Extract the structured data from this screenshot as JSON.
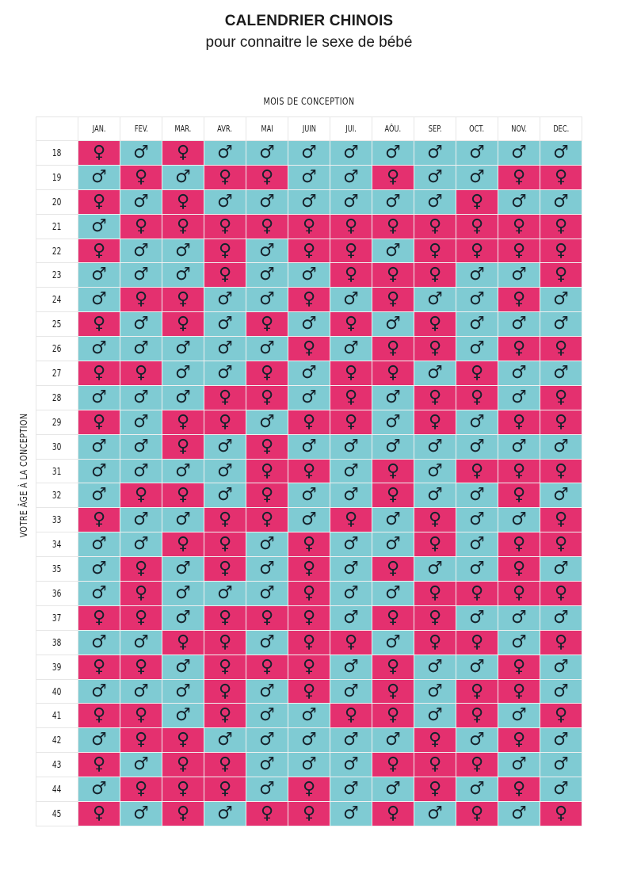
{
  "title": "CALENDRIER CHINOIS",
  "subtitle": "pour connaitre le sexe de bébé",
  "x_axis_label": "MOIS DE CONCEPTION",
  "y_axis_label": "VOTRE ÂGE À LA CONCEPTION",
  "colors": {
    "girl": "#e4306f",
    "boy": "#7fcbd3",
    "symbol": "#15222c"
  },
  "symbols": {
    "F": "♀",
    "M": "♂"
  },
  "months": [
    "JAN.",
    "FEV.",
    "MAR.",
    "AVR.",
    "MAI",
    "JUIN",
    "JUI.",
    "AÔU.",
    "SEP.",
    "OCT.",
    "NOV.",
    "DEC."
  ],
  "rows": [
    {
      "age": "18",
      "cells": "FMFMMMMMMMMM"
    },
    {
      "age": "19",
      "cells": "MFMFFMMFMMFF"
    },
    {
      "age": "20",
      "cells": "FMFMMMMMMFMM"
    },
    {
      "age": "21",
      "cells": "MFFFFFFFFFFF"
    },
    {
      "age": "22",
      "cells": "FMMFMFFMFFFF"
    },
    {
      "age": "23",
      "cells": "MMMFMMFFFMMF"
    },
    {
      "age": "24",
      "cells": "MFFMMFMFMMFM"
    },
    {
      "age": "25",
      "cells": "FMFMFMFMFMMM"
    },
    {
      "age": "26",
      "cells": "MMMMMFMFFMFF"
    },
    {
      "age": "27",
      "cells": "FFMMFMFFMFMM"
    },
    {
      "age": "28",
      "cells": "MMMFFMFMFFMF"
    },
    {
      "age": "29",
      "cells": "FMFFMFFMFMFF"
    },
    {
      "age": "30",
      "cells": "MMFMFMMMMMMM"
    },
    {
      "age": "31",
      "cells": "MMMMFFMFMFFF"
    },
    {
      "age": "32",
      "cells": "MFFMFMMFMMFM"
    },
    {
      "age": "33",
      "cells": "FMMFFMFMFMMF"
    },
    {
      "age": "34",
      "cells": "MMFFMFMMFMFF"
    },
    {
      "age": "35",
      "cells": "MFMFMFMFMMFM"
    },
    {
      "age": "36",
      "cells": "MFMMMFMMFFFF"
    },
    {
      "age": "37",
      "cells": "FFMFFFMFFMMM"
    },
    {
      "age": "38",
      "cells": "MMFFMFFMFFMF"
    },
    {
      "age": "39",
      "cells": "FFMFFFMFMMFM"
    },
    {
      "age": "40",
      "cells": "MMMFMFMFMFFM"
    },
    {
      "age": "41",
      "cells": "FFMFMMFFMFMF"
    },
    {
      "age": "42",
      "cells": "MFFMMMMMFMFM"
    },
    {
      "age": "43",
      "cells": "FMFFMMMFFFMM"
    },
    {
      "age": "44",
      "cells": "MFFFMFMMFMFM"
    },
    {
      "age": "45",
      "cells": "FMFMFFMFMFMF"
    }
  ]
}
